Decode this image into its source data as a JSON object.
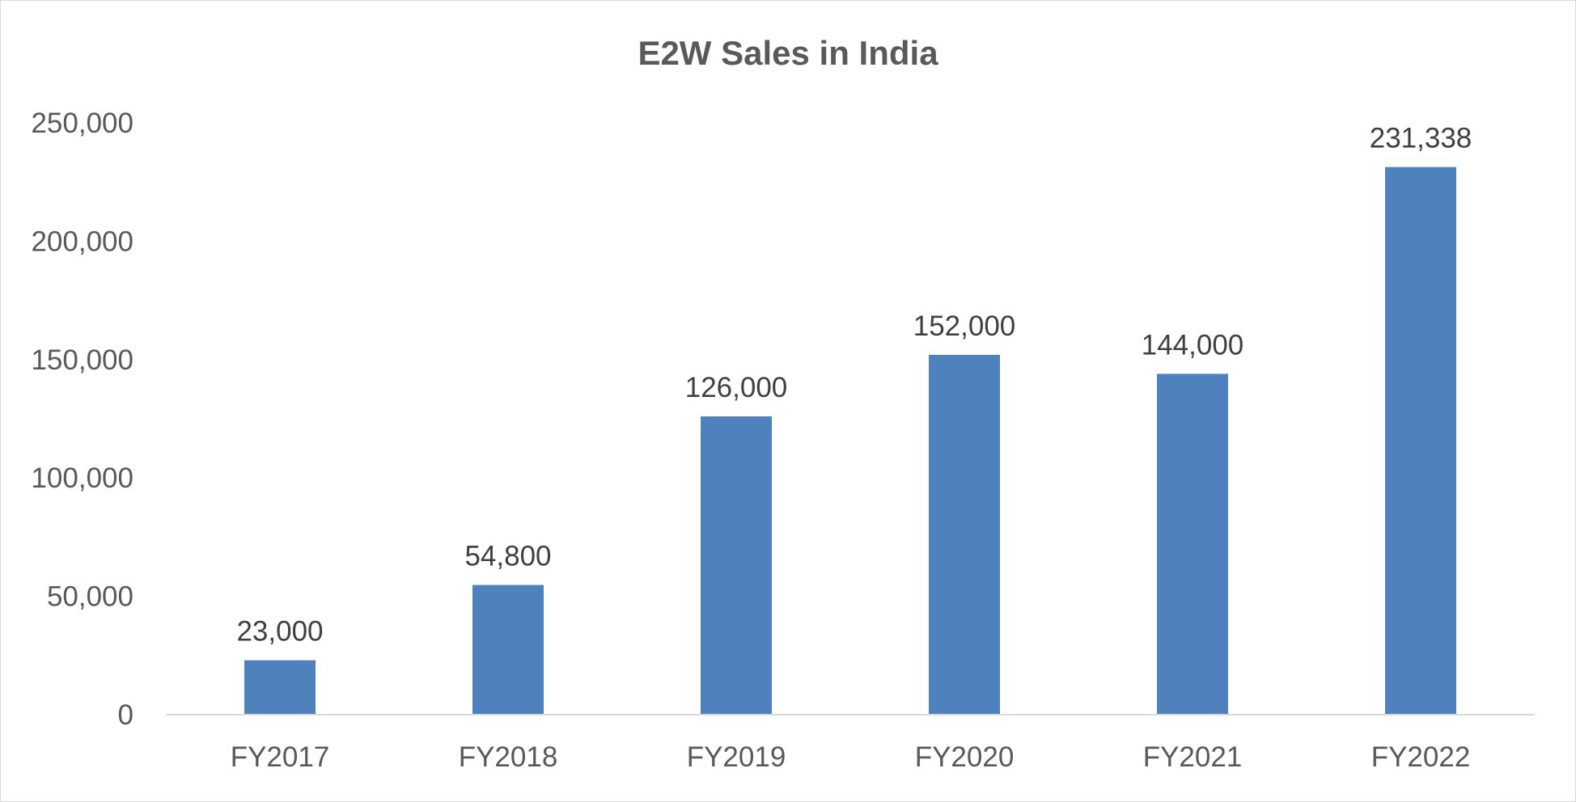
{
  "chart_data": {
    "type": "bar",
    "title": "E2W Sales in India",
    "xlabel": "",
    "ylabel": "",
    "categories": [
      "FY2017",
      "FY2018",
      "FY2019",
      "FY2020",
      "FY2021",
      "FY2022"
    ],
    "values": [
      23000,
      54800,
      126000,
      152000,
      144000,
      231338
    ],
    "data_labels": [
      "23,000",
      "54,800",
      "126,000",
      "152,000",
      "144,000",
      "231,338"
    ],
    "ylim": [
      0,
      250000
    ],
    "yticks": [
      0,
      50000,
      100000,
      150000,
      200000,
      250000
    ],
    "ytick_labels": [
      "0",
      "50,000",
      "100,000",
      "150,000",
      "200,000",
      "250,000"
    ],
    "grid": false,
    "legend": "none",
    "bar_color": "#4f81bd",
    "axis_color": "#d9d9d9",
    "text_color": "#595959"
  }
}
